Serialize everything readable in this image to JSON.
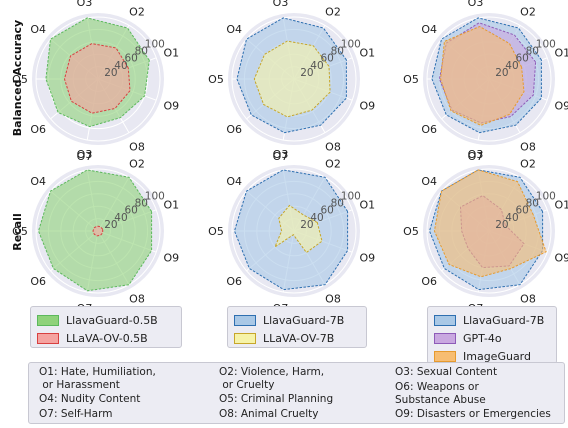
{
  "row_labels": [
    "Balanced Accuracy",
    "Recall"
  ],
  "axes": [
    "O1",
    "O2",
    "O3",
    "O4",
    "O5",
    "O6",
    "O7",
    "O8",
    "O9"
  ],
  "radial_ticks": [
    "20",
    "40",
    "60",
    "80",
    "100"
  ],
  "chart_data": [
    {
      "type": "radar",
      "row": "Balanced Accuracy",
      "col": 1,
      "rlim": [
        0,
        100
      ],
      "grid": true,
      "series": [
        {
          "name": "LlavaGuard-0.5B",
          "color": "#5cb85c",
          "fill": "#8fd27a",
          "values": [
            88,
            95,
            100,
            100,
            84,
            84,
            78,
            72,
            80
          ]
        },
        {
          "name": "LlavaOV-0.5B",
          "color": "#d84040",
          "fill": "#f5a3a0",
          "values": [
            52,
            58,
            58,
            58,
            54,
            56,
            56,
            55,
            55
          ]
        }
      ]
    },
    {
      "type": "radar",
      "row": "Balanced Accuracy",
      "col": 2,
      "rlim": [
        0,
        100
      ],
      "grid": true,
      "series": [
        {
          "name": "LlavaGuard-7B",
          "color": "#2e6fb0",
          "fill": "#a9c8e6",
          "values": [
            90,
            95,
            100,
            100,
            92,
            90,
            88,
            86,
            90
          ]
        },
        {
          "name": "LlavaOV-7B",
          "color": "#c7a62a",
          "fill": "#f6f3a8",
          "values": [
            60,
            62,
            62,
            62,
            64,
            64,
            62,
            58,
            62
          ]
        }
      ]
    },
    {
      "type": "radar",
      "row": "Balanced Accuracy",
      "col": 3,
      "rlim": [
        0,
        100
      ],
      "grid": true,
      "series": [
        {
          "name": "LlavaGuard-7B",
          "color": "#2e6fb0",
          "fill": "#a9c8e6",
          "values": [
            90,
            95,
            100,
            100,
            92,
            90,
            88,
            86,
            90
          ]
        },
        {
          "name": "GPT-4o",
          "color": "#8e5bb8",
          "fill": "#c9a8e0",
          "values": [
            80,
            82,
            92,
            90,
            80,
            78,
            72,
            70,
            76
          ]
        },
        {
          "name": "ImageGuard",
          "color": "#e69a2e",
          "fill": "#f7bd72",
          "values": [
            56,
            66,
            86,
            94,
            78,
            80,
            76,
            66,
            60
          ]
        }
      ]
    },
    {
      "type": "radar",
      "row": "Recall",
      "col": 1,
      "rlim": [
        0,
        100
      ],
      "grid": true,
      "series": [
        {
          "name": "LlavaGuard-0.5B",
          "color": "#5cb85c",
          "fill": "#8fd27a",
          "values": [
            92,
            100,
            100,
            100,
            96,
            94,
            98,
            100,
            92
          ]
        },
        {
          "name": "LlavaOV-0.5B",
          "color": "#d84040",
          "fill": "#f5a3a0",
          "values": [
            8,
            8,
            8,
            8,
            8,
            8,
            8,
            8,
            8
          ]
        }
      ]
    },
    {
      "type": "radar",
      "row": "Recall",
      "col": 2,
      "rlim": [
        0,
        100
      ],
      "grid": true,
      "series": [
        {
          "name": "LlavaGuard-7B",
          "color": "#2e6fb0",
          "fill": "#a9c8e6",
          "values": [
            92,
            100,
            100,
            100,
            96,
            94,
            96,
            100,
            92
          ]
        },
        {
          "name": "LlavaOV-7B",
          "color": "#c7a62a",
          "fill": "#f6f3a8",
          "values": [
            40,
            30,
            42,
            32,
            20,
            40,
            6,
            40,
            48
          ]
        }
      ]
    },
    {
      "type": "radar",
      "row": "Recall",
      "col": 3,
      "rlim": [
        0,
        100
      ],
      "grid": true,
      "series": [
        {
          "name": "LlavaGuard-7B",
          "color": "#2e6fb0",
          "fill": "#a9c8e6",
          "values": [
            92,
            100,
            100,
            100,
            96,
            94,
            96,
            100,
            92
          ]
        },
        {
          "name": "GPT-4o",
          "color": "#8e5bb8",
          "fill": "#c9a8e0",
          "values": [
            28,
            40,
            58,
            60,
            44,
            44,
            60,
            65,
            60
          ]
        },
        {
          "name": "ImageGuard",
          "color": "#e69a2e",
          "fill": "#f7bd72",
          "values": [
            76,
            92,
            100,
            100,
            88,
            84,
            75,
            70,
            98
          ]
        }
      ]
    }
  ],
  "legends": [
    [
      {
        "label": "LlavaGuard-0.5B",
        "color": "#5cb85c",
        "fill": "#8fd27a"
      },
      {
        "label": "LLaVA-OV-0.5B",
        "color": "#d84040",
        "fill": "#f5a3a0"
      }
    ],
    [
      {
        "label": "LlavaGuard-7B",
        "color": "#2e6fb0",
        "fill": "#a9c8e6"
      },
      {
        "label": "LLaVA-OV-7B",
        "color": "#c7a62a",
        "fill": "#f6f3a8"
      }
    ],
    [
      {
        "label": "LlavaGuard-7B",
        "color": "#2e6fb0",
        "fill": "#a9c8e6"
      },
      {
        "label": "GPT-4o",
        "color": "#8e5bb8",
        "fill": "#c9a8e0"
      },
      {
        "label": "ImageGuard",
        "color": "#e69a2e",
        "fill": "#f7bd72"
      }
    ]
  ],
  "key": [
    [
      "O1: Hate, Humiliation,\n or Harassment",
      "O2: Violence, Harm,\n or Cruelty",
      "O3: Sexual Content"
    ],
    [
      "O4: Nudity Content",
      "O5: Criminal Planning",
      "O6: Weapons or\nSubstance Abuse"
    ],
    [
      "O7: Self-Harm",
      "O8: Animal Cruelty",
      "O9: Disasters or Emergencies"
    ]
  ]
}
